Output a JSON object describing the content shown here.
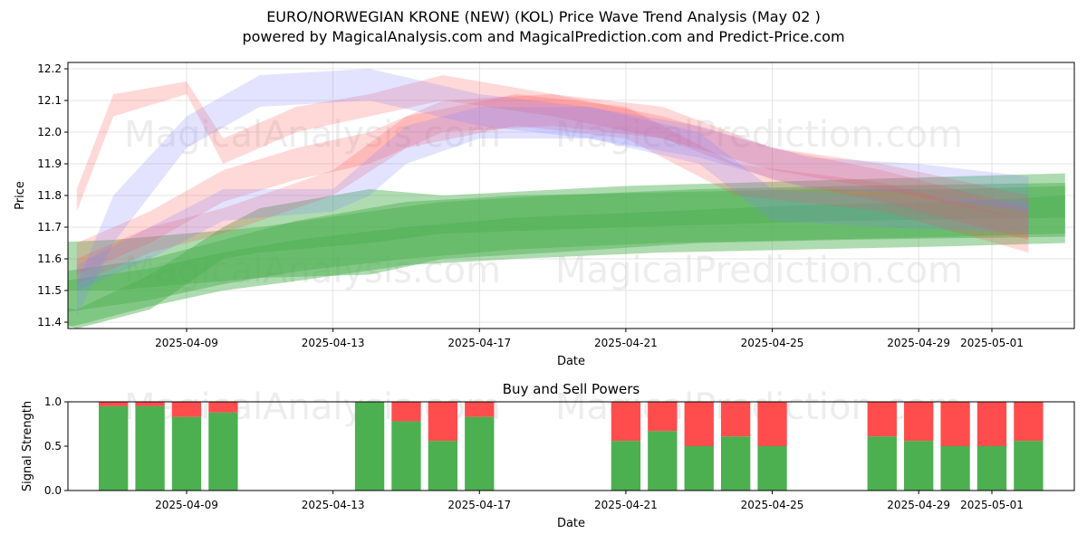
{
  "header": {
    "title": "EURO/NORWEGIAN KRONE (NEW) (KOL) Price Wave Trend Analysis (May 02 )",
    "subtitle": "powered by MagicalAnalysis.com and MagicalPrediction.com and Predict-Price.com"
  },
  "watermarks": [
    "MagicalAnalysis.com",
    "MagicalPrediction.com"
  ],
  "colors": {
    "green": "#4caf50",
    "red": "#ff4d4d",
    "blue": "#8080ff",
    "grid": "#dddddd"
  },
  "chart_data": [
    {
      "type": "area",
      "title": "",
      "xlabel": "Date",
      "ylabel": "Price",
      "ylim": [
        11.38,
        12.22
      ],
      "x_range": [
        "2025-04-05",
        "2025-05-04"
      ],
      "yticks": [
        11.4,
        11.5,
        11.6,
        11.7,
        11.8,
        11.9,
        12.0,
        12.1,
        12.2
      ],
      "ytick_labels": [
        "11.4",
        "11.5",
        "11.6",
        "11.7",
        "11.8",
        "11.9",
        "12.0",
        "12.1",
        "12.2"
      ],
      "xticks": [
        "2025-04-09",
        "2025-04-13",
        "2025-04-17",
        "2025-04-21",
        "2025-04-25",
        "2025-04-29",
        "2025-05-01"
      ],
      "grid": true,
      "series": [
        {
          "color": "green",
          "bands": [
            {
              "x": [
                "2025-04-05",
                "2025-04-08",
                "2025-04-10",
                "2025-04-12",
                "2025-04-15",
                "2025-04-18",
                "2025-04-22",
                "2025-04-26",
                "2025-04-30",
                "2025-05-03"
              ],
              "lower": [
                11.36,
                11.45,
                11.5,
                11.53,
                11.58,
                11.6,
                11.62,
                11.63,
                11.64,
                11.65
              ],
              "upper": [
                11.55,
                11.6,
                11.66,
                11.72,
                11.78,
                11.8,
                11.81,
                11.82,
                11.82,
                11.83
              ]
            },
            {
              "x": [
                "2025-04-05",
                "2025-04-08",
                "2025-04-10",
                "2025-04-12",
                "2025-04-15",
                "2025-04-18",
                "2025-04-22",
                "2025-04-26",
                "2025-04-30",
                "2025-05-03"
              ],
              "lower": [
                11.42,
                11.47,
                11.52,
                11.56,
                11.6,
                11.63,
                11.65,
                11.66,
                11.67,
                11.68
              ],
              "upper": [
                11.52,
                11.57,
                11.62,
                11.66,
                11.7,
                11.73,
                11.75,
                11.77,
                11.78,
                11.8
              ]
            },
            {
              "x": [
                "2025-04-05",
                "2025-04-07",
                "2025-04-09",
                "2025-04-11",
                "2025-04-14",
                "2025-04-16",
                "2025-04-19",
                "2025-04-23",
                "2025-04-27",
                "2025-05-03"
              ],
              "lower": [
                11.5,
                11.5,
                11.52,
                11.54,
                11.55,
                11.6,
                11.62,
                11.65,
                11.66,
                11.67
              ],
              "upper": [
                11.65,
                11.66,
                11.68,
                11.7,
                11.75,
                11.78,
                11.8,
                11.82,
                11.83,
                11.84
              ]
            },
            {
              "x": [
                "2025-04-05",
                "2025-04-06",
                "2025-04-08",
                "2025-04-10",
                "2025-04-11",
                "2025-04-14",
                "2025-04-16",
                "2025-04-21",
                "2025-04-27",
                "2025-05-03"
              ],
              "lower": [
                11.42,
                11.38,
                11.44,
                11.6,
                11.62,
                11.65,
                11.68,
                11.7,
                11.72,
                11.73
              ],
              "upper": [
                11.46,
                11.44,
                11.55,
                11.7,
                11.76,
                11.82,
                11.8,
                11.83,
                11.85,
                11.87
              ]
            }
          ]
        },
        {
          "color": "red",
          "bands": [
            {
              "x": [
                "2025-04-06",
                "2025-04-07",
                "2025-04-09",
                "2025-04-10",
                "2025-04-12",
                "2025-04-14",
                "2025-04-16",
                "2025-04-19",
                "2025-04-22",
                "2025-04-25",
                "2025-04-28",
                "2025-05-02"
              ],
              "lower": [
                11.75,
                12.05,
                12.12,
                11.9,
                12.0,
                12.05,
                12.1,
                12.05,
                11.98,
                11.88,
                11.82,
                11.72
              ],
              "upper": [
                11.82,
                12.12,
                12.16,
                11.98,
                12.08,
                12.12,
                12.18,
                12.12,
                12.05,
                11.95,
                11.9,
                11.8
              ]
            },
            {
              "x": [
                "2025-04-06",
                "2025-04-08",
                "2025-04-10",
                "2025-04-12",
                "2025-04-14",
                "2025-04-16",
                "2025-04-19",
                "2025-04-22",
                "2025-04-25",
                "2025-04-28",
                "2025-05-02"
              ],
              "lower": [
                11.55,
                11.65,
                11.78,
                11.85,
                11.9,
                12.0,
                12.02,
                11.98,
                11.85,
                11.78,
                11.66
              ],
              "upper": [
                11.65,
                11.75,
                11.88,
                11.95,
                12.0,
                12.1,
                12.12,
                12.08,
                11.95,
                11.88,
                11.76
              ]
            },
            {
              "x": [
                "2025-04-06",
                "2025-04-08",
                "2025-04-10",
                "2025-04-13",
                "2025-04-15",
                "2025-04-18",
                "2025-04-21",
                "2025-04-24",
                "2025-04-28",
                "2025-05-02"
              ],
              "lower": [
                11.52,
                11.62,
                11.68,
                11.8,
                11.95,
                12.02,
                11.98,
                11.8,
                11.75,
                11.62
              ],
              "upper": [
                11.6,
                11.7,
                11.76,
                11.88,
                12.05,
                12.12,
                12.08,
                11.9,
                11.84,
                11.72
              ]
            }
          ]
        },
        {
          "color": "blue",
          "bands": [
            {
              "x": [
                "2025-04-06",
                "2025-04-07",
                "2025-04-09",
                "2025-04-11",
                "2025-04-14",
                "2025-04-17",
                "2025-04-20",
                "2025-04-23",
                "2025-04-26",
                "2025-04-29",
                "2025-05-02"
              ],
              "lower": [
                11.42,
                11.65,
                11.95,
                12.08,
                12.1,
                12.02,
                11.98,
                11.92,
                11.82,
                11.8,
                11.75
              ],
              "upper": [
                11.52,
                11.8,
                12.05,
                12.18,
                12.2,
                12.12,
                12.08,
                12.02,
                11.92,
                11.9,
                11.86
              ]
            },
            {
              "x": [
                "2025-04-06",
                "2025-04-08",
                "2025-04-10",
                "2025-04-13",
                "2025-04-14",
                "2025-04-15",
                "2025-04-17",
                "2025-04-20",
                "2025-04-23",
                "2025-04-25",
                "2025-04-28",
                "2025-05-02"
              ],
              "lower": [
                11.5,
                11.6,
                11.72,
                11.75,
                11.8,
                11.9,
                11.98,
                11.98,
                11.9,
                11.72,
                11.7,
                11.68
              ],
              "upper": [
                11.58,
                11.7,
                11.82,
                11.82,
                11.92,
                12.02,
                12.08,
                12.08,
                12.0,
                11.82,
                11.8,
                11.78
              ]
            }
          ]
        }
      ]
    },
    {
      "type": "bar",
      "title": "Buy and Sell Powers",
      "xlabel": "Date",
      "ylabel": "Signal Strength",
      "ylim": [
        0,
        1.0
      ],
      "yticks": [
        0.0,
        0.5,
        1.0
      ],
      "ytick_labels": [
        "0.0",
        "0.5",
        "1.0"
      ],
      "xticks": [
        "2025-04-09",
        "2025-04-13",
        "2025-04-17",
        "2025-04-21",
        "2025-04-25",
        "2025-04-29",
        "2025-05-01"
      ],
      "categories": [
        "2025-04-07",
        "2025-04-08",
        "2025-04-09",
        "2025-04-10",
        "2025-04-14",
        "2025-04-15",
        "2025-04-16",
        "2025-04-17",
        "2025-04-21",
        "2025-04-22",
        "2025-04-23",
        "2025-04-24",
        "2025-04-25",
        "2025-04-28",
        "2025-04-29",
        "2025-04-30",
        "2025-05-01",
        "2025-05-02"
      ],
      "series": [
        {
          "color": "green",
          "values": [
            0.95,
            0.95,
            0.83,
            0.88,
            1.0,
            0.78,
            0.56,
            0.83,
            0.56,
            0.67,
            0.5,
            0.61,
            0.5,
            0.61,
            0.56,
            0.5,
            0.5,
            0.56
          ]
        },
        {
          "color": "red",
          "values": [
            0.05,
            0.05,
            0.17,
            0.12,
            0.0,
            0.22,
            0.44,
            0.17,
            0.44,
            0.33,
            0.5,
            0.39,
            0.5,
            0.39,
            0.44,
            0.5,
            0.5,
            0.44
          ]
        }
      ]
    }
  ]
}
